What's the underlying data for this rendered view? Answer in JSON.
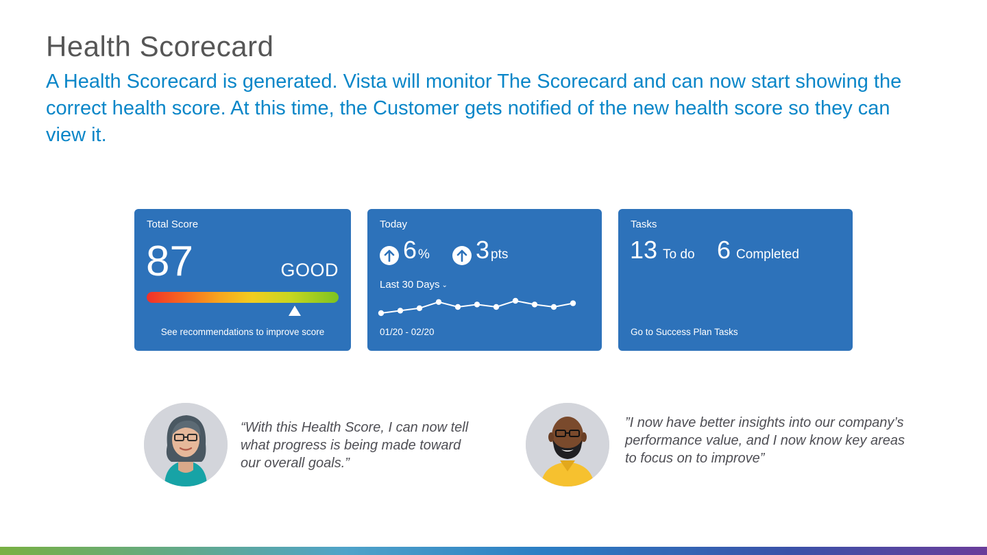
{
  "page": {
    "title": "Health Scorecard",
    "subtitle": "A Health Scorecard is generated. Vista will monitor The Scorecard and can now start showing the correct health score. At this time, the Customer gets notified of the new health score so they can view it."
  },
  "score_card": {
    "label": "Total Score",
    "score": "87",
    "rating": "GOOD",
    "marker_value": 87,
    "link": "See recommendations to improve score"
  },
  "today_card": {
    "label": "Today",
    "stat1_value": "6",
    "stat1_unit": "%",
    "stat2_value": "3",
    "stat2_unit": "pts",
    "range_label": "Last 30 Days",
    "date_range": "01/20 - 02/20",
    "sparkline": [
      4,
      6,
      8,
      13,
      9,
      11,
      9,
      14,
      11,
      9,
      12
    ]
  },
  "tasks_card": {
    "label": "Tasks",
    "todo_count": "13",
    "todo_label": "To do",
    "completed_count": "6",
    "completed_label": "Completed",
    "link": "Go to Success Plan Tasks"
  },
  "quotes": [
    {
      "text": "“With this Health Score, I can now tell what progress is being made toward our overall goals.”"
    },
    {
      "text": "”I now have better insights into our company’s performance value, and I now know key areas to focus on to improve”"
    }
  ],
  "colors": {
    "card": "#2d72ba",
    "subtitle": "#0a86c8",
    "title": "#565656"
  }
}
